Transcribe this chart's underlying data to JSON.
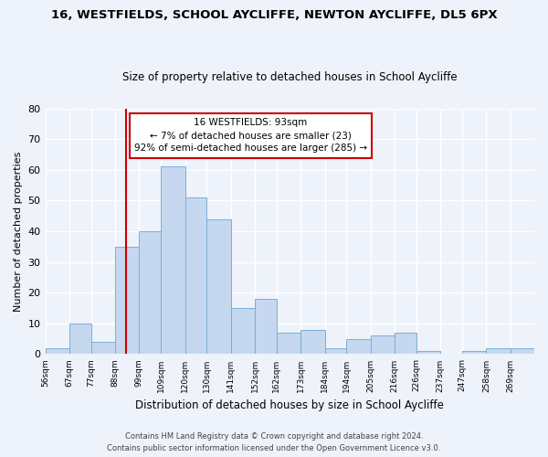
{
  "title": "16, WESTFIELDS, SCHOOL AYCLIFFE, NEWTON AYCLIFFE, DL5 6PX",
  "subtitle": "Size of property relative to detached houses in School Aycliffe",
  "xlabel": "Distribution of detached houses by size in School Aycliffe",
  "ylabel": "Number of detached properties",
  "bin_labels": [
    "56sqm",
    "67sqm",
    "77sqm",
    "88sqm",
    "99sqm",
    "109sqm",
    "120sqm",
    "130sqm",
    "141sqm",
    "152sqm",
    "162sqm",
    "173sqm",
    "184sqm",
    "194sqm",
    "205sqm",
    "216sqm",
    "226sqm",
    "237sqm",
    "247sqm",
    "258sqm",
    "269sqm"
  ],
  "bin_edges": [
    56,
    67,
    77,
    88,
    99,
    109,
    120,
    130,
    141,
    152,
    162,
    173,
    184,
    194,
    205,
    216,
    226,
    237,
    247,
    258,
    269,
    280
  ],
  "bar_heights": [
    2,
    10,
    4,
    35,
    40,
    61,
    51,
    44,
    15,
    18,
    7,
    8,
    2,
    5,
    6,
    7,
    1,
    0,
    1,
    2,
    2
  ],
  "bar_color": "#c5d8f0",
  "bar_edge_color": "#7bafd4",
  "vline_x": 93,
  "vline_color": "#cc0000",
  "annotation_title": "16 WESTFIELDS: 93sqm",
  "annotation_line1": "← 7% of detached houses are smaller (23)",
  "annotation_line2": "92% of semi-detached houses are larger (285) →",
  "annotation_box_facecolor": "#ffffff",
  "annotation_box_edgecolor": "#cc0000",
  "ylim": [
    0,
    80
  ],
  "yticks": [
    0,
    10,
    20,
    30,
    40,
    50,
    60,
    70,
    80
  ],
  "footer1": "Contains HM Land Registry data © Crown copyright and database right 2024.",
  "footer2": "Contains public sector information licensed under the Open Government Licence v3.0.",
  "bg_color": "#eef2fa",
  "grid_color": "#ffffff",
  "title_fontsize": 9.5,
  "subtitle_fontsize": 8.5,
  "ylabel_fontsize": 8,
  "xlabel_fontsize": 8.5,
  "ytick_fontsize": 8,
  "xtick_fontsize": 6.5,
  "footer_fontsize": 6,
  "annot_fontsize": 7.5
}
